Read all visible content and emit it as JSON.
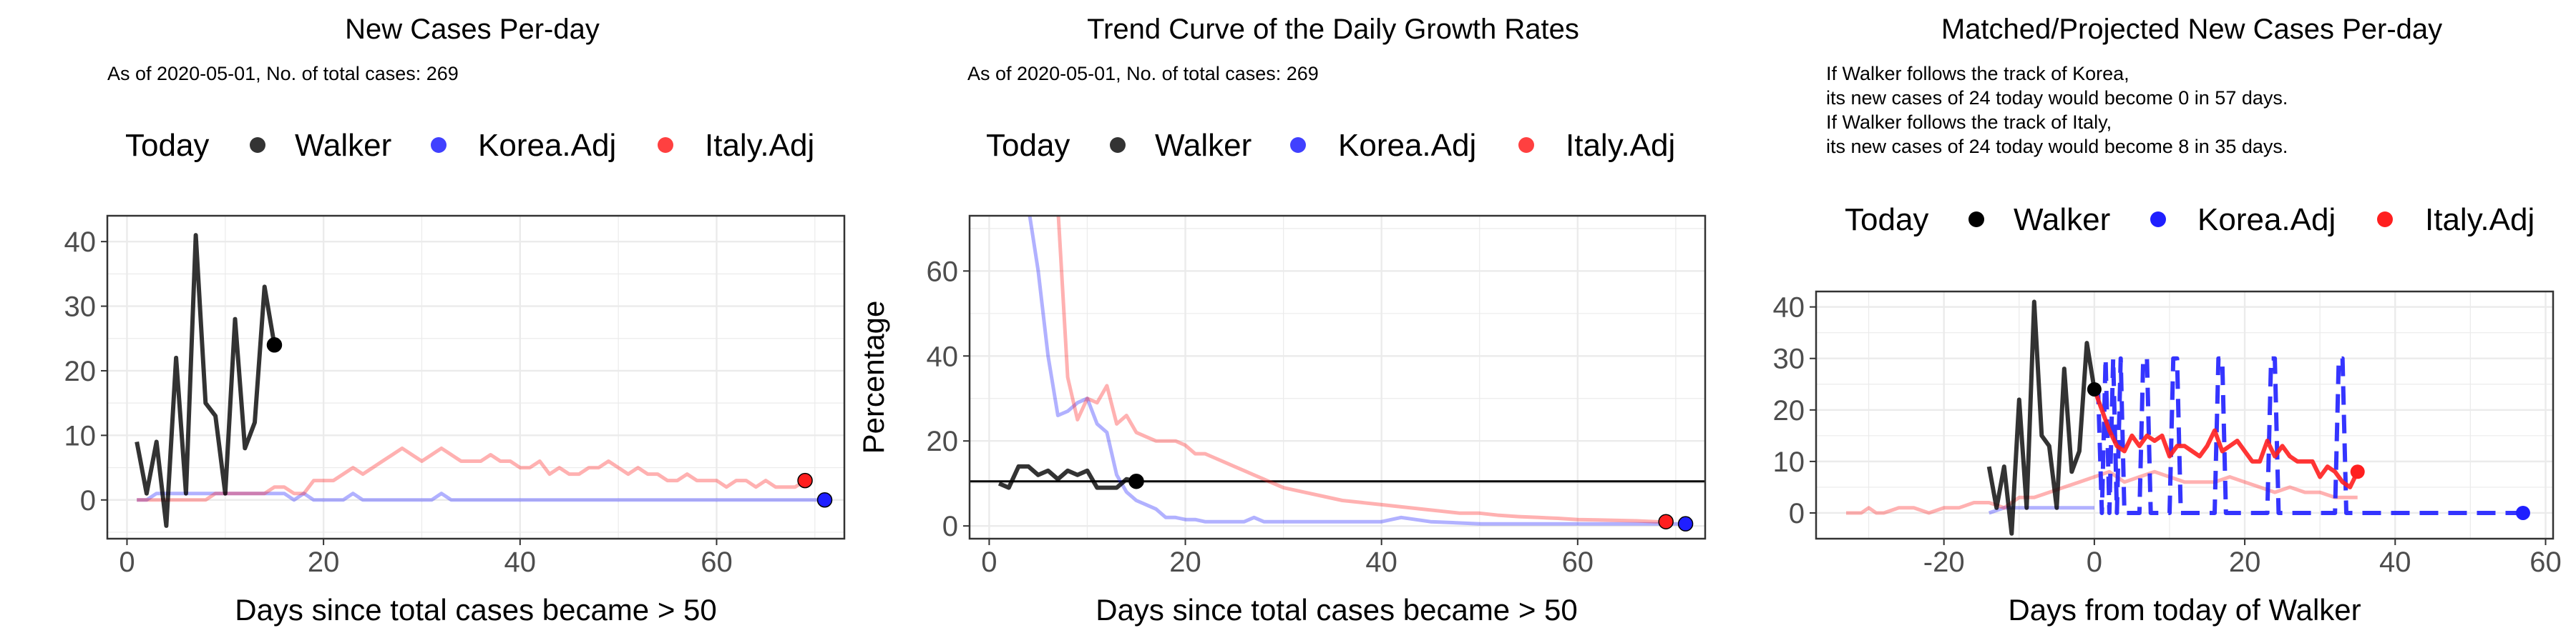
{
  "colors": {
    "walker": "#000000",
    "korea": "#1f1fff",
    "italy": "#ff1f1f",
    "grid": "#ebebeb",
    "panel_border": "#333333"
  },
  "panels": [
    {
      "title": "New Cases Per-day",
      "subtitle_lines": [
        "As of 2020-05-01, No. of total cases: 269"
      ],
      "legend": {
        "title": "Today",
        "items": [
          "Walker",
          "Korea.Adj",
          "Italy.Adj"
        ]
      },
      "xlabel": "Days since total cases became > 50",
      "ylabel": ""
    },
    {
      "title": "Trend Curve of the Daily Growth Rates",
      "subtitle_lines": [
        "As of 2020-05-01, No. of total cases: 269"
      ],
      "legend": {
        "title": "Today",
        "items": [
          "Walker",
          "Korea.Adj",
          "Italy.Adj"
        ]
      },
      "xlabel": "Days since total cases became > 50",
      "ylabel": "Percentage"
    },
    {
      "title": "Matched/Projected New Cases Per-day",
      "subtitle_lines": [
        "If Walker follows the track of Korea,",
        "its new cases of 24 today would become 0 in 57 days.",
        "If Walker follows the track of Italy,",
        "its new cases of 24 today would become 8 in 35 days."
      ],
      "legend": {
        "title": "Today",
        "items": [
          "Walker",
          "Korea.Adj",
          "Italy.Adj"
        ]
      },
      "xlabel": "Days from today of Walker",
      "ylabel": ""
    }
  ],
  "chart_data": [
    {
      "type": "line",
      "title": "New Cases Per-day",
      "xlabel": "Days since total cases became > 50",
      "ylabel": "",
      "xlim": [
        -2,
        73
      ],
      "ylim": [
        -6,
        44
      ],
      "xticks": [
        0,
        20,
        40,
        60
      ],
      "yticks": [
        0,
        10,
        20,
        30,
        40
      ],
      "grid": true,
      "legend_position": "top",
      "series": [
        {
          "name": "Walker",
          "x": [
            1,
            2,
            3,
            4,
            5,
            6,
            7,
            8,
            9,
            10,
            11,
            12,
            13,
            14,
            15
          ],
          "y": [
            9,
            1,
            9,
            -4,
            22,
            1,
            41,
            15,
            13,
            1,
            28,
            8,
            12,
            33,
            24
          ],
          "marker_last": true,
          "alpha": 0.8
        },
        {
          "name": "Korea.Adj",
          "x": [
            1,
            2,
            3,
            4,
            5,
            6,
            7,
            8,
            9,
            10,
            11,
            12,
            13,
            14,
            15,
            16,
            17,
            18,
            19,
            20,
            21,
            22,
            23,
            24,
            25,
            26,
            27,
            28,
            29,
            30,
            31,
            32,
            33,
            34,
            35,
            36,
            37,
            38,
            39,
            40,
            41,
            42,
            43,
            44,
            45,
            46,
            47,
            48,
            49,
            50,
            51,
            52,
            53,
            54,
            55,
            56,
            57,
            58,
            59,
            60,
            61,
            62,
            63,
            64,
            65,
            66,
            67,
            68,
            69,
            70,
            71
          ],
          "y": [
            0,
            0,
            1,
            1,
            1,
            1,
            1,
            1,
            1,
            1,
            1,
            1,
            1,
            1,
            1,
            1,
            0,
            1,
            0,
            0,
            0,
            0,
            1,
            0,
            0,
            0,
            0,
            0,
            0,
            0,
            0,
            1,
            0,
            0,
            0,
            0,
            0,
            0,
            0,
            0,
            0,
            0,
            0,
            0,
            0,
            0,
            0,
            0,
            0,
            0,
            0,
            0,
            0,
            0,
            0,
            0,
            0,
            0,
            0,
            0,
            0,
            0,
            0,
            0,
            0,
            0,
            0,
            0,
            0,
            0,
            0
          ],
          "marker_last": true,
          "alpha": 0.35
        },
        {
          "name": "Italy.Adj",
          "x": [
            1,
            2,
            3,
            4,
            5,
            6,
            7,
            8,
            9,
            10,
            11,
            12,
            13,
            14,
            15,
            16,
            17,
            18,
            19,
            20,
            21,
            22,
            23,
            24,
            25,
            26,
            27,
            28,
            29,
            30,
            31,
            32,
            33,
            34,
            35,
            36,
            37,
            38,
            39,
            40,
            41,
            42,
            43,
            44,
            45,
            46,
            47,
            48,
            49,
            50,
            51,
            52,
            53,
            54,
            55,
            56,
            57,
            58,
            59,
            60,
            61,
            62,
            63,
            64,
            65,
            66,
            67,
            68,
            69
          ],
          "y": [
            0,
            0,
            0,
            0,
            0,
            0,
            0,
            0,
            1,
            1,
            1,
            1,
            1,
            1,
            2,
            2,
            1,
            1,
            3,
            3,
            3,
            4,
            5,
            4,
            5,
            6,
            7,
            8,
            7,
            6,
            7,
            8,
            7,
            6,
            6,
            6,
            7,
            6,
            6,
            5,
            5,
            6,
            4,
            5,
            4,
            4,
            5,
            5,
            6,
            5,
            4,
            5,
            4,
            4,
            3,
            3,
            4,
            3,
            3,
            3,
            2,
            3,
            3,
            2,
            3,
            2,
            2,
            2,
            3
          ],
          "marker_last": true,
          "alpha": 0.35
        }
      ]
    },
    {
      "type": "line",
      "title": "Trend Curve of the Daily Growth Rates",
      "xlabel": "Days since total cases became > 50",
      "ylabel": "Percentage",
      "xlim": [
        -2,
        73
      ],
      "ylim": [
        -3,
        73
      ],
      "xticks": [
        0,
        20,
        40,
        60
      ],
      "yticks": [
        0,
        20,
        40,
        60
      ],
      "grid": true,
      "legend_position": "top",
      "hline": 10.5,
      "series": [
        {
          "name": "Walker",
          "x": [
            1,
            2,
            3,
            4,
            5,
            6,
            7,
            8,
            9,
            10,
            11,
            12,
            13,
            14,
            15
          ],
          "y": [
            10,
            9,
            14,
            14,
            12,
            13,
            11,
            13,
            12,
            13,
            9,
            9,
            9,
            11,
            10.5
          ],
          "marker_last": true,
          "alpha": 0.8
        },
        {
          "name": "Korea.Adj",
          "x": [
            4,
            5,
            6,
            7,
            8,
            9,
            10,
            11,
            12,
            13,
            14,
            15,
            16,
            17,
            18,
            19,
            20,
            21,
            22,
            23,
            24,
            25,
            26,
            27,
            28,
            29,
            30,
            35,
            40,
            42,
            45,
            50,
            55,
            60,
            65,
            71
          ],
          "y": [
            75,
            60,
            40,
            26,
            27,
            29,
            30,
            24,
            22,
            12,
            8,
            6,
            5,
            4,
            2,
            2,
            1.5,
            1.5,
            1,
            1,
            1,
            1,
            1,
            2,
            1,
            1,
            1,
            1,
            1,
            2,
            1,
            0.5,
            0.5,
            0.5,
            0.5,
            0.5
          ],
          "marker_last": true,
          "alpha": 0.35
        },
        {
          "name": "Italy.Adj",
          "x": [
            7,
            8,
            9,
            10,
            11,
            12,
            13,
            14,
            15,
            16,
            17,
            18,
            19,
            20,
            21,
            22,
            23,
            24,
            25,
            26,
            27,
            28,
            29,
            30,
            32,
            34,
            36,
            38,
            40,
            42,
            44,
            46,
            48,
            50,
            52,
            54,
            56,
            58,
            60,
            62,
            64,
            66,
            68,
            69
          ],
          "y": [
            75,
            35,
            25,
            30,
            29,
            33,
            24,
            26,
            22,
            21,
            20,
            20,
            20,
            19,
            17,
            17,
            16,
            15,
            14,
            13,
            12,
            11,
            10,
            9,
            8,
            7,
            6,
            5.5,
            5,
            4.5,
            4,
            3.5,
            3,
            3,
            2.5,
            2.2,
            2,
            1.8,
            1.5,
            1.4,
            1.3,
            1.2,
            1,
            1
          ],
          "marker_last": true,
          "alpha": 0.35
        }
      ]
    },
    {
      "type": "line",
      "title": "Matched/Projected New Cases Per-day",
      "xlabel": "Days from today of Walker",
      "ylabel": "",
      "xlim": [
        -37,
        61
      ],
      "ylim": [
        -5,
        43
      ],
      "xticks": [
        -20,
        0,
        20,
        40,
        60
      ],
      "yticks": [
        0,
        10,
        20,
        30,
        40
      ],
      "grid": true,
      "legend_position": "top",
      "series": [
        {
          "name": "Walker",
          "x": [
            -14,
            -13,
            -12,
            -11,
            -10,
            -9,
            -8,
            -7,
            -6,
            -5,
            -4,
            -3,
            -2,
            -1,
            0
          ],
          "y": [
            9,
            1,
            9,
            -4,
            22,
            1,
            41,
            15,
            13,
            1,
            28,
            8,
            12,
            33,
            24
          ],
          "marker_last": true,
          "alpha": 0.8
        },
        {
          "name": "Korea.Adj (matched)",
          "x": [
            -14,
            -12,
            -10,
            -8,
            -6,
            -4,
            -2,
            0
          ],
          "y": [
            0,
            1,
            1,
            1,
            1,
            1,
            1,
            1
          ],
          "alpha": 0.35
        },
        {
          "name": "Korea.Adj (projected)",
          "x": [
            0,
            0.5,
            1,
            1.5,
            2,
            2.5,
            3,
            3.5,
            4,
            5,
            6,
            6.5,
            7,
            7.5,
            8,
            9,
            10,
            10.5,
            11,
            11.5,
            12,
            13,
            14,
            15,
            16,
            16.5,
            17,
            17.5,
            18,
            19,
            20,
            21,
            22,
            23,
            23.5,
            24,
            24.5,
            25,
            26,
            27,
            28,
            29,
            30,
            31,
            32,
            32.5,
            33,
            33.5,
            34,
            35,
            40,
            45,
            50,
            57
          ],
          "y": [
            24,
            24,
            0,
            30,
            0,
            30,
            0,
            30,
            0,
            0,
            0,
            30,
            30,
            0,
            0,
            0,
            0,
            30,
            30,
            0,
            0,
            0,
            0,
            0,
            0,
            30,
            30,
            0,
            0,
            0,
            0,
            0,
            0,
            0,
            30,
            30,
            0,
            0,
            0,
            0,
            0,
            0,
            0,
            0,
            0,
            30,
            30,
            0,
            0,
            0,
            0,
            0,
            0,
            0
          ],
          "marker_last": true,
          "dashed": true,
          "alpha": 0.9
        },
        {
          "name": "Italy.Adj (matched)",
          "x": [
            -33,
            -31,
            -30,
            -29,
            -28,
            -26,
            -24,
            -22,
            -20,
            -18,
            -16,
            -14,
            -12,
            -10,
            -8,
            -6,
            -4,
            -2,
            0,
            2,
            4,
            6,
            8,
            10,
            12,
            14,
            16,
            18,
            20,
            22,
            24,
            26,
            28,
            30,
            32,
            35
          ],
          "y": [
            0,
            0,
            1,
            0,
            0,
            1,
            1,
            0,
            1,
            1,
            2,
            2,
            1,
            3,
            3,
            4,
            5,
            6,
            7,
            8,
            6,
            7,
            8,
            7,
            6,
            6,
            6,
            7,
            6,
            5,
            4,
            5,
            4,
            4,
            3,
            3
          ],
          "alpha": 0.35
        },
        {
          "name": "Italy.Adj (projected)",
          "x": [
            0,
            1,
            2,
            3,
            4,
            5,
            6,
            7,
            8,
            9,
            10,
            11,
            12,
            13,
            14,
            15,
            16,
            17,
            18,
            19,
            20,
            21,
            22,
            23,
            24,
            25,
            26,
            27,
            28,
            29,
            30,
            31,
            32,
            33,
            34,
            35
          ],
          "y": [
            24,
            20,
            16,
            13,
            12,
            15,
            13,
            15,
            14,
            15,
            11,
            13,
            13,
            12,
            11,
            13,
            16,
            12,
            13,
            14,
            12,
            10,
            10,
            14,
            11,
            13,
            11,
            10,
            10,
            10,
            7,
            9,
            8,
            6,
            5,
            8
          ],
          "marker_last": true,
          "alpha": 0.9
        }
      ]
    }
  ]
}
